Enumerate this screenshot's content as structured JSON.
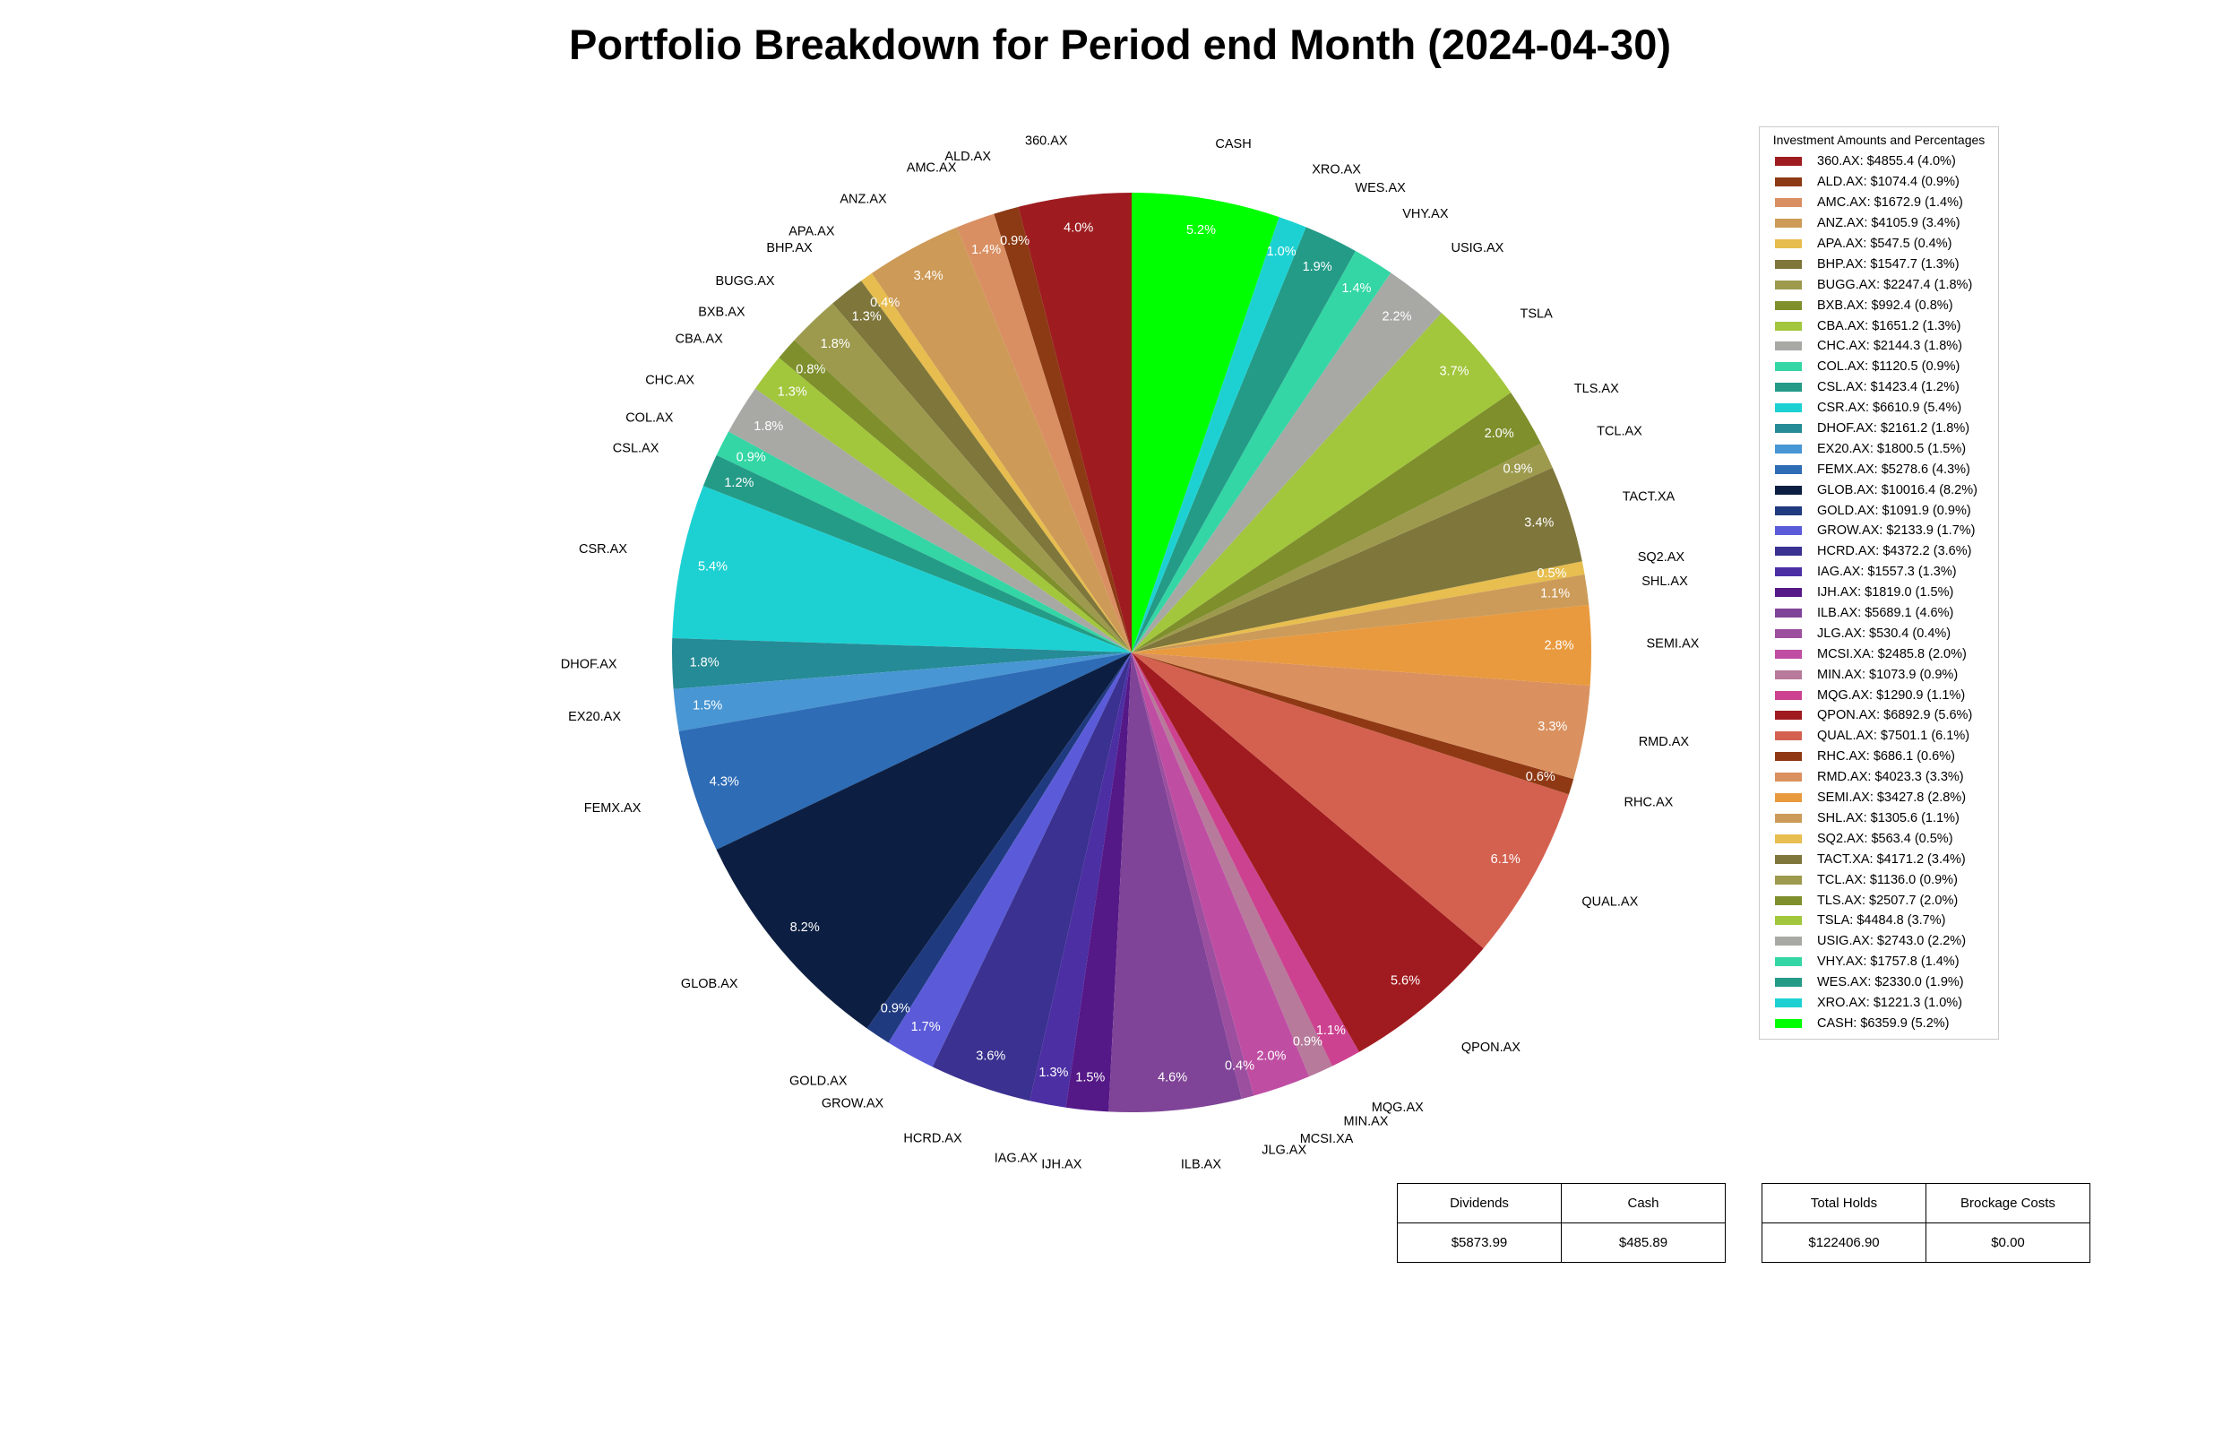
{
  "chart_data": {
    "type": "pie",
    "title": "Portfolio Breakdown for Period end Month (2024-04-30)",
    "legend_title": "Investment Amounts and Percentages",
    "legend_position": "right",
    "slices": [
      {
        "label": "360.AX",
        "value": 4855.4,
        "percent": "4.0%",
        "legend": "360.AX: $4855.4 (4.0%)",
        "color": "#9E1C20"
      },
      {
        "label": "ALD.AX",
        "value": 1074.4,
        "percent": "0.9%",
        "legend": "ALD.AX: $1074.4 (0.9%)",
        "color": "#8C3A14"
      },
      {
        "label": "AMC.AX",
        "value": 1672.9,
        "percent": "1.4%",
        "legend": "AMC.AX: $1672.9 (1.4%)",
        "color": "#D98F62"
      },
      {
        "label": "ANZ.AX",
        "value": 4105.9,
        "percent": "3.4%",
        "legend": "ANZ.AX: $4105.9 (3.4%)",
        "color": "#CD9A57"
      },
      {
        "label": "APA.AX",
        "value": 547.5,
        "percent": "0.4%",
        "legend": "APA.AX: $547.5 (0.4%)",
        "color": "#E6BD4E"
      },
      {
        "label": "BHP.AX",
        "value": 1547.7,
        "percent": "1.3%",
        "legend": "BHP.AX: $1547.7 (1.3%)",
        "color": "#7F763B"
      },
      {
        "label": "BUGG.AX",
        "value": 2247.4,
        "percent": "1.8%",
        "legend": "BUGG.AX: $2247.4 (1.8%)",
        "color": "#9D9A4D"
      },
      {
        "label": "BXB.AX",
        "value": 992.4,
        "percent": "0.8%",
        "legend": "BXB.AX: $992.4 (0.8%)",
        "color": "#7E8F2C"
      },
      {
        "label": "CBA.AX",
        "value": 1651.2,
        "percent": "1.3%",
        "legend": "CBA.AX: $1651.2 (1.3%)",
        "color": "#A2C63C"
      },
      {
        "label": "CHC.AX",
        "value": 2144.3,
        "percent": "1.8%",
        "legend": "CHC.AX: $2144.3 (1.8%)",
        "color": "#A8A9A4"
      },
      {
        "label": "COL.AX",
        "value": 1120.5,
        "percent": "0.9%",
        "legend": "COL.AX: $1120.5 (0.9%)",
        "color": "#33D6A4"
      },
      {
        "label": "CSL.AX",
        "value": 1423.4,
        "percent": "1.2%",
        "legend": "CSL.AX: $1423.4 (1.2%)",
        "color": "#239B87"
      },
      {
        "label": "CSR.AX",
        "value": 6610.9,
        "percent": "5.4%",
        "legend": "CSR.AX: $6610.9 (5.4%)",
        "color": "#1DD1D3"
      },
      {
        "label": "DHOF.AX",
        "value": 2161.2,
        "percent": "1.8%",
        "legend": "DHOF.AX: $2161.2 (1.8%)",
        "color": "#258B96"
      },
      {
        "label": "EX20.AX",
        "value": 1800.5,
        "percent": "1.5%",
        "legend": "EX20.AX: $1800.5 (1.5%)",
        "color": "#4896D3"
      },
      {
        "label": "FEMX.AX",
        "value": 5278.6,
        "percent": "4.3%",
        "legend": "FEMX.AX: $5278.6 (4.3%)",
        "color": "#2E6CB6"
      },
      {
        "label": "GLOB.AX",
        "value": 10016.4,
        "percent": "8.2%",
        "legend": "GLOB.AX: $10016.4 (8.2%)",
        "color": "#0C1F42"
      },
      {
        "label": "GOLD.AX",
        "value": 1091.9,
        "percent": "0.9%",
        "legend": "GOLD.AX: $1091.9 (0.9%)",
        "color": "#203A80"
      },
      {
        "label": "GROW.AX",
        "value": 2133.9,
        "percent": "1.7%",
        "legend": "GROW.AX: $2133.9 (1.7%)",
        "color": "#5B5BD9"
      },
      {
        "label": "HCRD.AX",
        "value": 4372.2,
        "percent": "3.6%",
        "legend": "HCRD.AX: $4372.2 (3.6%)",
        "color": "#3A3190"
      },
      {
        "label": "IAG.AX",
        "value": 1557.3,
        "percent": "1.3%",
        "legend": "IAG.AX: $1557.3 (1.3%)",
        "color": "#4C2FA3"
      },
      {
        "label": "IJH.AX",
        "value": 1819.0,
        "percent": "1.5%",
        "legend": "IJH.AX: $1819.0 (1.5%)",
        "color": "#551887"
      },
      {
        "label": "ILB.AX",
        "value": 5689.1,
        "percent": "4.6%",
        "legend": "ILB.AX: $5689.1 (4.6%)",
        "color": "#7F4497"
      },
      {
        "label": "JLG.AX",
        "value": 530.4,
        "percent": "0.4%",
        "legend": "JLG.AX: $530.4 (0.4%)",
        "color": "#9B4F9E"
      },
      {
        "label": "MCSI.XA",
        "value": 2485.8,
        "percent": "2.0%",
        "legend": "MCSI.XA: $2485.8 (2.0%)",
        "color": "#BF4EA3"
      },
      {
        "label": "MIN.AX",
        "value": 1073.9,
        "percent": "0.9%",
        "legend": "MIN.AX: $1073.9 (0.9%)",
        "color": "#B77A9B"
      },
      {
        "label": "MQG.AX",
        "value": 1290.9,
        "percent": "1.1%",
        "legend": "MQG.AX: $1290.9 (1.1%)",
        "color": "#CC4290"
      },
      {
        "label": "QPON.AX",
        "value": 6892.9,
        "percent": "5.6%",
        "legend": "QPON.AX: $6892.9 (5.6%)",
        "color": "#A01B1F"
      },
      {
        "label": "QUAL.AX",
        "value": 7501.1,
        "percent": "6.1%",
        "legend": "QUAL.AX: $7501.1 (6.1%)",
        "color": "#D46150"
      },
      {
        "label": "RHC.AX",
        "value": 686.1,
        "percent": "0.6%",
        "legend": "RHC.AX: $686.1 (0.6%)",
        "color": "#8F3914"
      },
      {
        "label": "RMD.AX",
        "value": 4023.3,
        "percent": "3.3%",
        "legend": "RMD.AX: $4023.3 (3.3%)",
        "color": "#DA915F"
      },
      {
        "label": "SEMI.AX",
        "value": 3427.8,
        "percent": "2.8%",
        "legend": "SEMI.AX: $3427.8 (2.8%)",
        "color": "#E99A3E"
      },
      {
        "label": "SHL.AX",
        "value": 1305.6,
        "percent": "1.1%",
        "legend": "SHL.AX: $1305.6 (1.1%)",
        "color": "#CC9B59"
      },
      {
        "label": "SQ2.AX",
        "value": 563.4,
        "percent": "0.5%",
        "legend": "SQ2.AX: $563.4 (0.5%)",
        "color": "#E7BE4F"
      },
      {
        "label": "TACT.XA",
        "value": 4171.2,
        "percent": "3.4%",
        "legend": "TACT.XA: $4171.2 (3.4%)",
        "color": "#7F763B"
      },
      {
        "label": "TCL.AX",
        "value": 1136.0,
        "percent": "0.9%",
        "legend": "TCL.AX: $1136.0 (0.9%)",
        "color": "#9D9A4D"
      },
      {
        "label": "TLS.AX",
        "value": 2507.7,
        "percent": "2.0%",
        "legend": "TLS.AX: $2507.7 (2.0%)",
        "color": "#7E8F2C"
      },
      {
        "label": "TSLA",
        "value": 4484.8,
        "percent": "3.7%",
        "legend": "TSLA: $4484.8 (3.7%)",
        "color": "#A2C63C"
      },
      {
        "label": "USIG.AX",
        "value": 2743.0,
        "percent": "2.2%",
        "legend": "USIG.AX: $2743.0 (2.2%)",
        "color": "#A8A9A4"
      },
      {
        "label": "VHY.AX",
        "value": 1757.8,
        "percent": "1.4%",
        "legend": "VHY.AX: $1757.8 (1.4%)",
        "color": "#33D6A4"
      },
      {
        "label": "WES.AX",
        "value": 2330.0,
        "percent": "1.9%",
        "legend": "WES.AX: $2330.0 (1.9%)",
        "color": "#239B87"
      },
      {
        "label": "XRO.AX",
        "value": 1221.3,
        "percent": "1.0%",
        "legend": "XRO.AX: $1221.3 (1.0%)",
        "color": "#1DD1D3"
      },
      {
        "label": "CASH",
        "value": 6359.9,
        "percent": "5.2%",
        "legend": "CASH: $6359.9 (5.2%)",
        "color": "#00FF00"
      }
    ]
  },
  "summary_table_left": {
    "headers": [
      "Dividends",
      "Cash"
    ],
    "values": [
      "$5873.99",
      "$485.89"
    ]
  },
  "summary_table_right": {
    "headers": [
      "Total Holds",
      "Brockage Costs"
    ],
    "values": [
      "$122406.90",
      "$0.00"
    ]
  }
}
